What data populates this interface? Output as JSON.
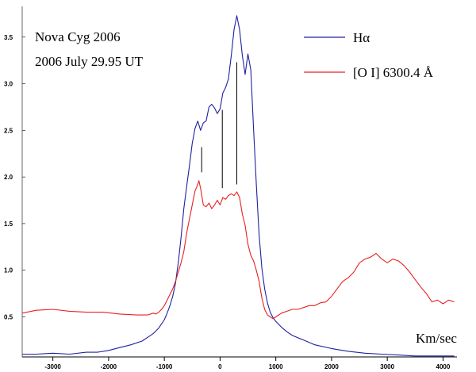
{
  "chart_data": {
    "type": "line",
    "annotations": [
      "Nova Cyg 2006",
      "2006 July 29.95 UT"
    ],
    "xlabel": "Km/sec",
    "ylabel": "",
    "xlim": [
      -3550,
      4250
    ],
    "ylim": [
      0.07,
      3.83
    ],
    "x_ticks": [
      -3000,
      -2000,
      -1000,
      0,
      1000,
      2000,
      3000,
      4000
    ],
    "y_ticks": [
      0.5,
      1.0,
      1.5,
      2.0,
      2.5,
      3.0,
      3.5
    ],
    "x_tick_labels": [
      "-3000",
      "-2000",
      "-1000",
      "0",
      "1000",
      "2000",
      "3000",
      "4000"
    ],
    "y_tick_labels": [
      "0.5",
      "1.0",
      "1.5",
      "2.0",
      "2.5",
      "3.0",
      "3.5"
    ],
    "legend_position": "top-right",
    "series": [
      {
        "name": "Hα",
        "color": "#2020a0",
        "x": [
          -3550,
          -3300,
          -3000,
          -2700,
          -2400,
          -2200,
          -2000,
          -1800,
          -1600,
          -1400,
          -1300,
          -1200,
          -1100,
          -1000,
          -950,
          -900,
          -850,
          -800,
          -750,
          -700,
          -650,
          -600,
          -550,
          -500,
          -450,
          -400,
          -350,
          -300,
          -250,
          -200,
          -150,
          -100,
          -50,
          0,
          50,
          100,
          150,
          200,
          250,
          300,
          350,
          400,
          450,
          500,
          550,
          600,
          650,
          700,
          750,
          800,
          850,
          900,
          950,
          1000,
          1100,
          1200,
          1300,
          1500,
          1700,
          2000,
          2300,
          2600,
          2900,
          3200,
          3500,
          3800,
          4000,
          4200
        ],
        "y": [
          0.1,
          0.1,
          0.11,
          0.1,
          0.12,
          0.12,
          0.14,
          0.17,
          0.2,
          0.24,
          0.28,
          0.32,
          0.38,
          0.47,
          0.54,
          0.62,
          0.72,
          0.86,
          1.08,
          1.35,
          1.66,
          1.9,
          2.12,
          2.36,
          2.52,
          2.6,
          2.5,
          2.58,
          2.6,
          2.75,
          2.78,
          2.74,
          2.68,
          2.73,
          2.9,
          2.96,
          3.05,
          3.3,
          3.58,
          3.73,
          3.58,
          3.3,
          3.1,
          3.32,
          3.15,
          2.52,
          1.92,
          1.38,
          1.02,
          0.8,
          0.65,
          0.55,
          0.49,
          0.45,
          0.39,
          0.34,
          0.3,
          0.25,
          0.2,
          0.16,
          0.13,
          0.11,
          0.1,
          0.09,
          0.08,
          0.08,
          0.08,
          0.08
        ]
      },
      {
        "name": "[O I] 6300.4 Å",
        "color": "#e82020",
        "x": [
          -3550,
          -3300,
          -3000,
          -2700,
          -2400,
          -2100,
          -1800,
          -1500,
          -1300,
          -1200,
          -1150,
          -1100,
          -1050,
          -1000,
          -950,
          -900,
          -850,
          -800,
          -750,
          -700,
          -650,
          -600,
          -550,
          -500,
          -450,
          -400,
          -380,
          -350,
          -300,
          -250,
          -200,
          -150,
          -100,
          -50,
          0,
          50,
          100,
          150,
          200,
          250,
          300,
          350,
          400,
          450,
          500,
          550,
          600,
          650,
          700,
          750,
          800,
          850,
          900,
          950,
          1000,
          1100,
          1200,
          1300,
          1400,
          1500,
          1600,
          1700,
          1800,
          1900,
          2000,
          2100,
          2200,
          2300,
          2400,
          2500,
          2600,
          2700,
          2800,
          2900,
          3000,
          3100,
          3200,
          3300,
          3400,
          3500,
          3600,
          3700,
          3800,
          3900,
          4000,
          4100,
          4200
        ],
        "y": [
          0.54,
          0.57,
          0.58,
          0.56,
          0.55,
          0.55,
          0.53,
          0.52,
          0.52,
          0.54,
          0.53,
          0.55,
          0.58,
          0.62,
          0.68,
          0.74,
          0.8,
          0.88,
          0.98,
          1.08,
          1.2,
          1.4,
          1.55,
          1.7,
          1.85,
          1.92,
          1.96,
          1.88,
          1.7,
          1.68,
          1.72,
          1.66,
          1.7,
          1.75,
          1.7,
          1.78,
          1.76,
          1.8,
          1.82,
          1.8,
          1.84,
          1.78,
          1.6,
          1.48,
          1.28,
          1.16,
          1.1,
          1.0,
          0.88,
          0.7,
          0.58,
          0.52,
          0.5,
          0.48,
          0.5,
          0.54,
          0.56,
          0.58,
          0.58,
          0.6,
          0.62,
          0.62,
          0.65,
          0.66,
          0.72,
          0.8,
          0.88,
          0.92,
          0.98,
          1.08,
          1.12,
          1.14,
          1.18,
          1.12,
          1.08,
          1.12,
          1.1,
          1.05,
          0.98,
          0.9,
          0.82,
          0.75,
          0.66,
          0.68,
          0.64,
          0.68,
          0.66
        ]
      }
    ],
    "vertical_marks": [
      {
        "x": -330,
        "y_bottom": 2.05,
        "y_top": 2.32
      },
      {
        "x": 40,
        "y_bottom": 1.88,
        "y_top": 2.72
      },
      {
        "x": 300,
        "y_bottom": 1.92,
        "y_top": 3.23
      }
    ]
  }
}
